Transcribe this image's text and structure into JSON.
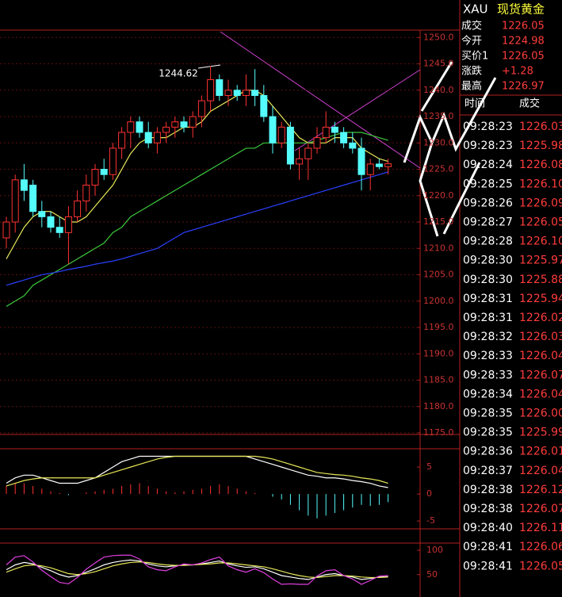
{
  "chart_data": [
    {
      "type": "candlestick",
      "annotation": "1244.62",
      "open": [
        1212,
        1215,
        1223,
        1222,
        1217,
        1216,
        1214,
        1213,
        1216,
        1219,
        1222,
        1225,
        1224,
        1229,
        1232,
        1234,
        1232,
        1230,
        1232,
        1233,
        1234,
        1233,
        1235,
        1238,
        1242,
        1239,
        1240,
        1239,
        1240,
        1239,
        1235,
        1230,
        1233,
        1226,
        1227,
        1229,
        1231,
        1233,
        1232,
        1230,
        1229,
        1224,
        1226,
        1225.5
      ],
      "high": [
        1216,
        1224,
        1226,
        1223,
        1219,
        1217,
        1216,
        1218,
        1221,
        1224,
        1226,
        1227,
        1230,
        1233,
        1235,
        1235,
        1234,
        1233,
        1234,
        1235,
        1235,
        1236,
        1239,
        1244.62,
        1243,
        1242,
        1241,
        1243,
        1244,
        1241,
        1237,
        1234,
        1234,
        1229,
        1230,
        1233,
        1236,
        1234,
        1233,
        1232,
        1231,
        1227,
        1227,
        1227
      ],
      "low": [
        1210,
        1213,
        1219,
        1216,
        1214,
        1213,
        1212,
        1207,
        1215,
        1217,
        1220,
        1223,
        1223,
        1227,
        1229,
        1231,
        1229,
        1228,
        1230,
        1231,
        1232,
        1231,
        1233,
        1236,
        1238,
        1237,
        1238,
        1237,
        1237,
        1234,
        1228,
        1229,
        1225,
        1223,
        1223,
        1228,
        1230,
        1230,
        1229,
        1228,
        1221,
        1221,
        1225,
        1224
      ],
      "close": [
        1215,
        1223,
        1221,
        1217,
        1216,
        1214,
        1213,
        1216,
        1219,
        1222,
        1225,
        1224,
        1229,
        1232,
        1234,
        1232,
        1230,
        1232,
        1233,
        1234,
        1233,
        1235,
        1238,
        1242,
        1239,
        1240,
        1239,
        1240,
        1239,
        1235,
        1230,
        1233,
        1226,
        1227,
        1229,
        1231,
        1233,
        1232,
        1230,
        1229,
        1224,
        1226,
        1225.5,
        1226.05
      ],
      "up_color": "#ff3232",
      "down_color": "#54fcfc",
      "series": [
        {
          "color": "#e8e85a",
          "values": [
            1208,
            1211,
            1214,
            1216,
            1217,
            1217,
            1216,
            1215,
            1215,
            1216,
            1218,
            1220,
            1222,
            1225,
            1228,
            1230,
            1231,
            1231,
            1231,
            1232,
            1233,
            1233,
            1234,
            1236,
            1237,
            1238,
            1239,
            1240,
            1240,
            1239,
            1237,
            1235,
            1233,
            1231,
            1230,
            1230,
            1230,
            1231,
            1231,
            1231,
            1229,
            1228,
            1227,
            1226.5
          ]
        },
        {
          "color": "#3cc83c",
          "values": [
            1199,
            1200,
            1201,
            1203,
            1204,
            1205,
            1206,
            1207,
            1208,
            1209,
            1210,
            1211,
            1213,
            1214,
            1216,
            1217,
            1218,
            1219,
            1220,
            1221,
            1222,
            1223,
            1224,
            1225,
            1226,
            1227,
            1228,
            1229,
            1229,
            1230,
            1230,
            1230,
            1230,
            1230,
            1230,
            1230.5,
            1231,
            1231.5,
            1232,
            1232,
            1232,
            1231.5,
            1231,
            1230.5
          ]
        },
        {
          "color": "#2a40ff",
          "values": [
            1203,
            1203.5,
            1204,
            1204.5,
            1205,
            1205.3,
            1205.6,
            1206,
            1206.3,
            1206.6,
            1207,
            1207.3,
            1207.6,
            1208,
            1208.5,
            1209,
            1209.5,
            1210,
            1211,
            1212,
            1213,
            1213.5,
            1214,
            1214.5,
            1215,
            1215.5,
            1216,
            1216.5,
            1217,
            1217.5,
            1218,
            1218.5,
            1219,
            1219.5,
            1220,
            1220.5,
            1221,
            1221.5,
            1222,
            1222.5,
            1223,
            1223.5,
            1224,
            1224.5
          ]
        }
      ],
      "ylim": [
        1174.7,
        1251.4
      ],
      "yticks": [
        {
          "value": 1250,
          "label": "1250.0"
        },
        {
          "value": 1245,
          "label": "1245.0"
        },
        {
          "value": 1240,
          "label": "1240.0"
        },
        {
          "value": 1235,
          "label": "1235.0"
        },
        {
          "value": 1230,
          "label": "1230.0"
        },
        {
          "value": 1225,
          "label": "1225.0"
        },
        {
          "value": 1220,
          "label": "1220.0"
        },
        {
          "value": 1215,
          "label": "1215.0"
        },
        {
          "value": 1210,
          "label": "1210.0"
        },
        {
          "value": 1205,
          "label": "1205.0"
        },
        {
          "value": 1200,
          "label": "1200.0"
        },
        {
          "value": 1195,
          "label": "1195.0"
        },
        {
          "value": 1190,
          "label": "1190.0"
        },
        {
          "value": 1185,
          "label": "1185.0"
        },
        {
          "value": 1180,
          "label": "1180.0"
        },
        {
          "value": 1175,
          "label": "1175.0"
        }
      ],
      "grid": true
    },
    {
      "type": "macd",
      "values": [
        1.5,
        2,
        2,
        1.5,
        1,
        0.5,
        0.2,
        -0.2,
        0,
        0.3,
        0.5,
        0.8,
        1,
        1.5,
        1.8,
        2,
        1.5,
        1,
        0.5,
        0.3,
        0.5,
        0.8,
        1,
        1.5,
        1.8,
        1.5,
        1,
        0.5,
        0.2,
        0,
        -0.5,
        -1,
        -2,
        -3,
        -4,
        -4.5,
        -4,
        -3.5,
        -3,
        -2.5,
        -2,
        -2.2,
        -2,
        -1.5
      ],
      "up_color": "#ff3232",
      "down_color": "#54fcfc",
      "series": [
        {
          "color": "#ffffff",
          "values": [
            2,
            3,
            3.5,
            3.5,
            3,
            2.5,
            2,
            2,
            2,
            2.5,
            3,
            4,
            5,
            6,
            6.5,
            7,
            7,
            7,
            7,
            7,
            7,
            7,
            7,
            7,
            7,
            7,
            7,
            7,
            6.5,
            6,
            5.5,
            5,
            4.5,
            4,
            3.5,
            3.3,
            3,
            3,
            2.8,
            2.5,
            2.3,
            2,
            1.5,
            1.2
          ]
        },
        {
          "color": "#e8e85a",
          "values": [
            1.5,
            2,
            2.5,
            2.8,
            3,
            3,
            3,
            3,
            3,
            3,
            3,
            3.5,
            4,
            4.5,
            5,
            5.5,
            6,
            6.5,
            6.8,
            7,
            7,
            7,
            7,
            7,
            7,
            7,
            7,
            7,
            7,
            6.8,
            6.5,
            6,
            5.5,
            5,
            4.5,
            4,
            3.8,
            3.6,
            3.5,
            3.3,
            3,
            2.8,
            2.5,
            2
          ]
        }
      ],
      "ylim": [
        -6.3,
        8.4
      ],
      "yticks": [
        5,
        0,
        -5
      ]
    },
    {
      "type": "line",
      "series": [
        {
          "color": "#ffffff",
          "values": [
            60,
            70,
            75,
            72,
            65,
            58,
            50,
            45,
            48,
            55,
            62,
            70,
            75,
            78,
            80,
            78,
            72,
            68,
            66,
            68,
            70,
            70,
            72,
            75,
            78,
            72,
            68,
            65,
            66,
            62,
            55,
            48,
            45,
            42,
            40,
            45,
            50,
            52,
            48,
            45,
            40,
            42,
            45,
            46
          ]
        },
        {
          "color": "#e8e85a",
          "values": [
            55,
            62,
            68,
            70,
            68,
            64,
            58,
            52,
            50,
            52,
            56,
            62,
            68,
            72,
            75,
            76,
            75,
            72,
            70,
            69,
            69,
            70,
            71,
            72,
            74,
            74,
            72,
            70,
            68,
            66,
            62,
            57,
            52,
            48,
            45,
            44,
            46,
            48,
            48,
            47,
            45,
            44,
            44,
            45
          ]
        },
        {
          "color": "#e040e0",
          "values": [
            70,
            86,
            89,
            76,
            59,
            46,
            34,
            31,
            44,
            61,
            74,
            86,
            89,
            90,
            90,
            82,
            66,
            60,
            58,
            66,
            72,
            70,
            74,
            81,
            86,
            68,
            60,
            55,
            62,
            54,
            41,
            30,
            31,
            30,
            30,
            47,
            58,
            60,
            48,
            41,
            30,
            38,
            47,
            48
          ]
        }
      ],
      "ylim": [
        5.6,
        114.8
      ],
      "yticks": [
        100,
        50
      ]
    }
  ],
  "quote": {
    "symbol": "XAU",
    "name": "现货黄金",
    "rows": [
      [
        "成交",
        "1226.05"
      ],
      [
        "今开",
        "1224.98"
      ],
      [
        "买价1",
        "1226.05"
      ],
      [
        "涨跌",
        "+1.28"
      ],
      [
        "最高",
        "1226.97"
      ]
    ]
  },
  "trades": {
    "header": [
      "时间",
      "成交"
    ],
    "rows": [
      [
        "09:28:23",
        "1226.03"
      ],
      [
        "09:28:23",
        "1225.98"
      ],
      [
        "09:28:24",
        "1226.08"
      ],
      [
        "09:28:25",
        "1226.10"
      ],
      [
        "09:28:26",
        "1226.09"
      ],
      [
        "09:28:27",
        "1226.05"
      ],
      [
        "09:28:28",
        "1226.10"
      ],
      [
        "09:28:30",
        "1225.97"
      ],
      [
        "09:28:30",
        "1225.88"
      ],
      [
        "09:28:31",
        "1225.94"
      ],
      [
        "09:28:31",
        "1226.02"
      ],
      [
        "09:28:32",
        "1226.03"
      ],
      [
        "09:28:33",
        "1226.04"
      ],
      [
        "09:28:33",
        "1226.07"
      ],
      [
        "09:28:34",
        "1226.04"
      ],
      [
        "09:28:35",
        "1226.00"
      ],
      [
        "09:28:35",
        "1225.99"
      ],
      [
        "09:28:36",
        "1226.01"
      ],
      [
        "09:28:37",
        "1226.04"
      ],
      [
        "09:28:38",
        "1226.12"
      ],
      [
        "09:28:38",
        "1226.07"
      ],
      [
        "09:28:40",
        "1226.11"
      ],
      [
        "09:28:41",
        "1226.06"
      ],
      [
        "09:28:41",
        "1226.05"
      ]
    ]
  }
}
